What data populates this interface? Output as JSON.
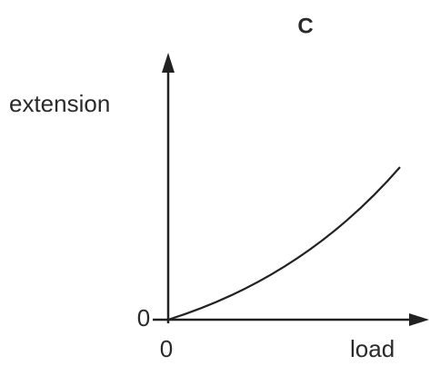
{
  "title": "C",
  "y_axis_label": "extension",
  "x_axis_label": "load",
  "y_origin_label": "0",
  "x_origin_label": "0"
}
